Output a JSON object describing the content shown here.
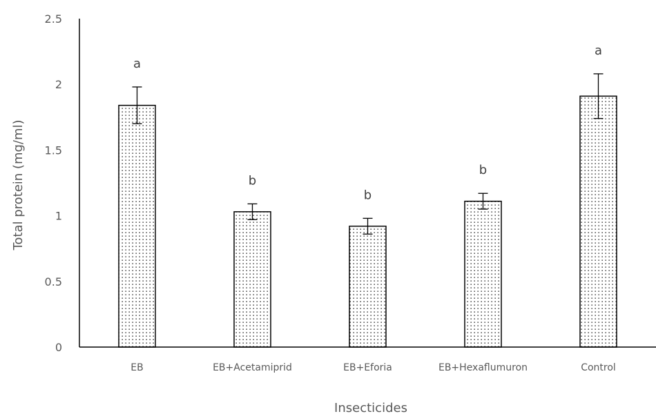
{
  "chart_data": {
    "type": "bar",
    "title": "",
    "xlabel": "Insecticides",
    "ylabel": "Total protein (mg/ml)",
    "ylim": [
      0,
      2.5
    ],
    "yticks": [
      "0",
      "0.5",
      "1",
      "1.5",
      "2",
      "2.5"
    ],
    "grid": false,
    "legend": "none",
    "categories": [
      "EB",
      "EB+Acetamiprid",
      "EB+Eforia",
      "EB+Hexaflumuron",
      "Control"
    ],
    "values": [
      1.84,
      1.03,
      0.92,
      1.11,
      1.91
    ],
    "errors": [
      0.14,
      0.06,
      0.06,
      0.06,
      0.17
    ],
    "significance_letters": [
      "a",
      "b",
      "b",
      "b",
      "a"
    ],
    "bar_fill": "dotted",
    "bar_color": "#ffffff",
    "bar_edge_color": "#000000",
    "dot_color": "#000000",
    "axis_color": "#000000"
  }
}
